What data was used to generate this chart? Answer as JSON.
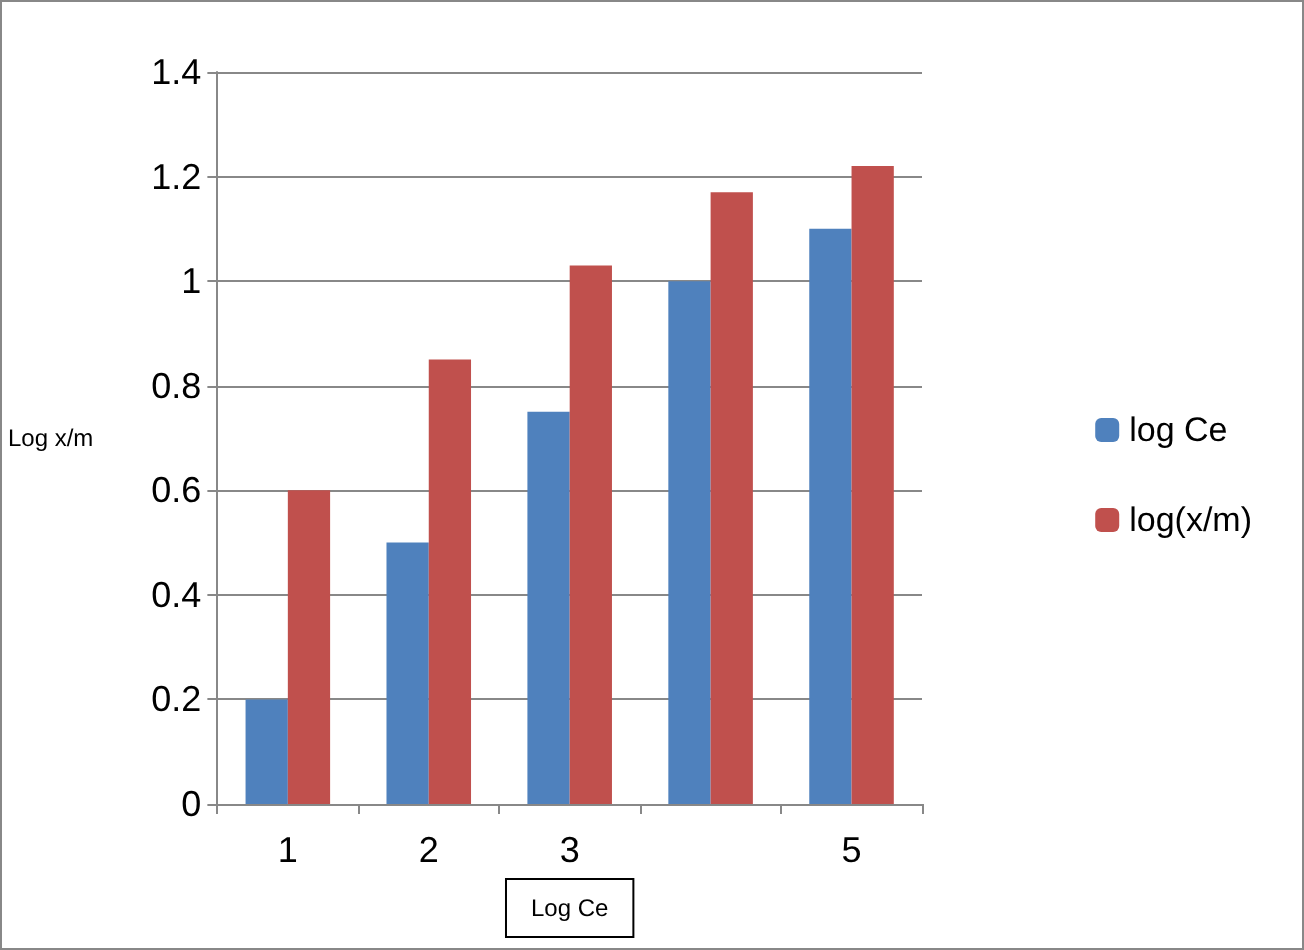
{
  "chart_data": {
    "type": "bar",
    "xlabel": "Log Ce",
    "ylabel": "Log x/m",
    "categories": [
      "1",
      "2",
      "3",
      null,
      "5"
    ],
    "series": [
      {
        "name": "log Ce",
        "color": "#4f81bd",
        "values": [
          0.2,
          0.5,
          0.75,
          1.0,
          1.1
        ]
      },
      {
        "name": "log(x/m)",
        "color": "#c0504d",
        "values": [
          0.6,
          0.85,
          1.03,
          1.17,
          1.22
        ]
      }
    ],
    "ylim": [
      0,
      1.4
    ],
    "yticks": [
      0,
      0.2,
      0.4,
      0.6,
      0.8,
      1,
      1.2,
      1.4
    ],
    "grid": "y",
    "legend": "right"
  }
}
